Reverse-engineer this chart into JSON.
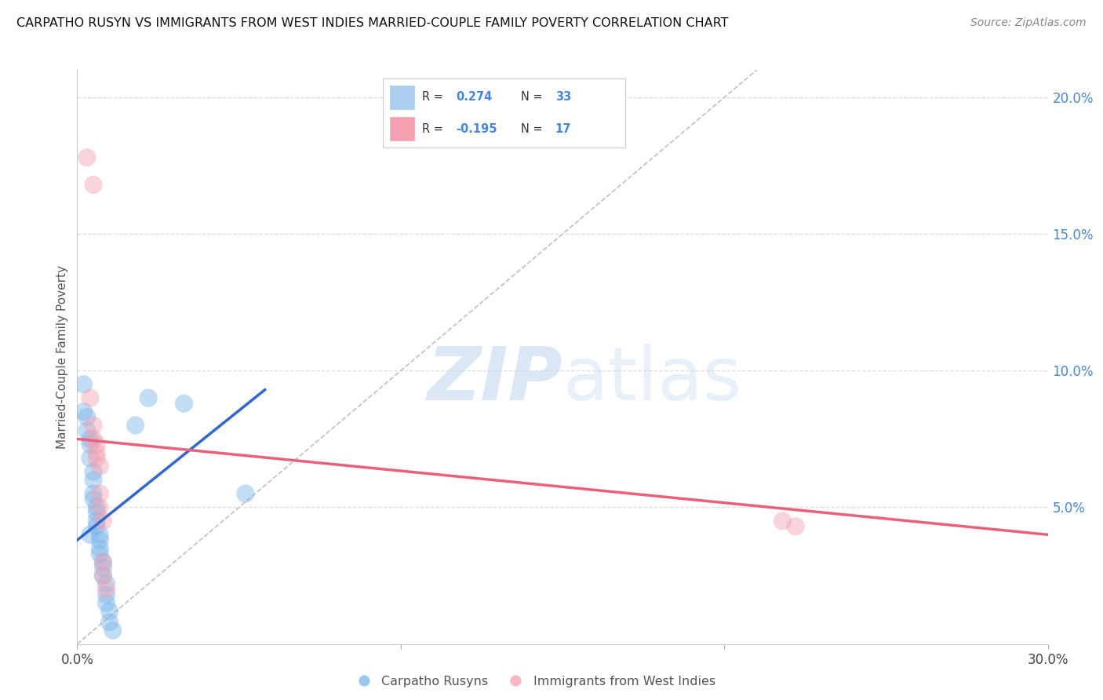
{
  "title": "CARPATHO RUSYN VS IMMIGRANTS FROM WEST INDIES MARRIED-COUPLE FAMILY POVERTY CORRELATION CHART",
  "source": "Source: ZipAtlas.com",
  "ylabel": "Married-Couple Family Poverty",
  "right_yticks": [
    "20.0%",
    "15.0%",
    "10.0%",
    "5.0%"
  ],
  "right_ytick_vals": [
    0.2,
    0.15,
    0.1,
    0.05
  ],
  "xlim": [
    0.0,
    0.3
  ],
  "ylim": [
    0.0,
    0.21
  ],
  "blue_scatter": [
    [
      0.002,
      0.095
    ],
    [
      0.002,
      0.085
    ],
    [
      0.003,
      0.083
    ],
    [
      0.003,
      0.078
    ],
    [
      0.004,
      0.075
    ],
    [
      0.004,
      0.073
    ],
    [
      0.004,
      0.068
    ],
    [
      0.005,
      0.063
    ],
    [
      0.005,
      0.06
    ],
    [
      0.005,
      0.055
    ],
    [
      0.005,
      0.053
    ],
    [
      0.006,
      0.05
    ],
    [
      0.006,
      0.048
    ],
    [
      0.006,
      0.045
    ],
    [
      0.006,
      0.043
    ],
    [
      0.007,
      0.04
    ],
    [
      0.007,
      0.038
    ],
    [
      0.007,
      0.035
    ],
    [
      0.007,
      0.033
    ],
    [
      0.008,
      0.03
    ],
    [
      0.008,
      0.028
    ],
    [
      0.008,
      0.025
    ],
    [
      0.009,
      0.022
    ],
    [
      0.009,
      0.018
    ],
    [
      0.009,
      0.015
    ],
    [
      0.01,
      0.012
    ],
    [
      0.01,
      0.008
    ],
    [
      0.011,
      0.005
    ],
    [
      0.018,
      0.08
    ],
    [
      0.022,
      0.09
    ],
    [
      0.033,
      0.088
    ],
    [
      0.052,
      0.055
    ],
    [
      0.004,
      0.04
    ]
  ],
  "pink_scatter": [
    [
      0.003,
      0.178
    ],
    [
      0.005,
      0.168
    ],
    [
      0.004,
      0.09
    ],
    [
      0.005,
      0.08
    ],
    [
      0.005,
      0.075
    ],
    [
      0.006,
      0.073
    ],
    [
      0.006,
      0.07
    ],
    [
      0.006,
      0.068
    ],
    [
      0.007,
      0.065
    ],
    [
      0.007,
      0.055
    ],
    [
      0.007,
      0.05
    ],
    [
      0.008,
      0.045
    ],
    [
      0.008,
      0.03
    ],
    [
      0.008,
      0.025
    ],
    [
      0.009,
      0.02
    ],
    [
      0.218,
      0.045
    ],
    [
      0.222,
      0.043
    ]
  ],
  "blue_line_x": [
    0.0,
    0.058
  ],
  "blue_line_y": [
    0.038,
    0.093
  ],
  "pink_line_x": [
    0.0,
    0.3
  ],
  "pink_line_y": [
    0.075,
    0.04
  ],
  "diag_line_x": [
    0.0,
    0.21
  ],
  "diag_line_y": [
    0.0,
    0.21
  ],
  "blue_color": "#7ab4e8",
  "pink_color": "#f4a0b0",
  "blue_line_color": "#3366cc",
  "pink_line_color": "#e8607a",
  "diag_line_color": "#c0c0c0",
  "bg_color": "#ffffff",
  "grid_color": "#dddddd",
  "legend_r1": "R =  0.274",
  "legend_n1": "N = 33",
  "legend_r2": "R = -0.195",
  "legend_n2": "N = 17",
  "r1_val": "0.274",
  "n1_val": "33",
  "r2_val": "-0.195",
  "n2_val": "17"
}
